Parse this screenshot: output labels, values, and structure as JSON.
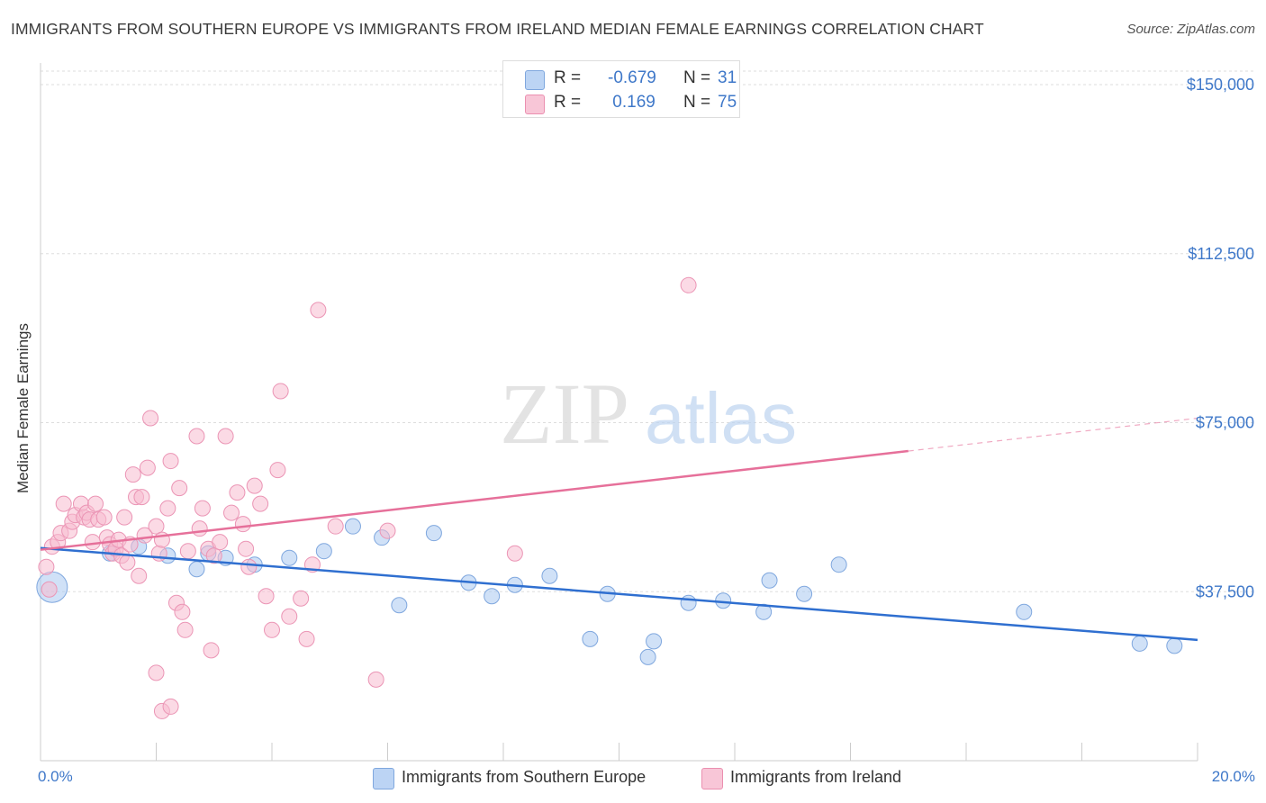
{
  "title": "IMMIGRANTS FROM SOUTHERN EUROPE VS IMMIGRANTS FROM IRELAND MEDIAN FEMALE EARNINGS CORRELATION CHART",
  "source": "Source: ZipAtlas.com",
  "watermark": {
    "zip": "ZIP",
    "atlas": "atlas"
  },
  "colors": {
    "blue": "#2f6fd0",
    "pink": "#e6709a",
    "blue_fill": "#a9c8f0",
    "pink_fill": "#f7bcd0",
    "axis_text": "#3f78c9"
  },
  "stats_legend": {
    "rows": [
      {
        "label": "R =",
        "r": "-0.679",
        "n_label": "N =",
        "n": "31"
      },
      {
        "label": "R =",
        "r": " 0.169",
        "n_label": "N =",
        "n": "75"
      }
    ]
  },
  "chart_data": {
    "type": "scatter",
    "ylabel": "Median Female Earnings",
    "xlim": [
      0,
      20
    ],
    "ylim": [
      0,
      153000
    ],
    "x_tick_labels": {
      "min": "0.0%",
      "max": "20.0%"
    },
    "y_ticks": [
      {
        "value": 37500,
        "label": "$37,500"
      },
      {
        "value": 75000,
        "label": "$75,000"
      },
      {
        "value": 112500,
        "label": "$112,500"
      },
      {
        "value": 150000,
        "label": "$150,000"
      }
    ],
    "grid": true,
    "legend_placement": "bottom",
    "series": [
      {
        "name": "Immigrants from Southern Europe",
        "color": "#2f6fd0",
        "trend": {
          "x": [
            0,
            20
          ],
          "y": [
            47200,
            26800
          ],
          "dashed_from": null
        },
        "points": [
          {
            "x": 0.2,
            "y": 38500,
            "big": true
          },
          {
            "x": 1.2,
            "y": 46000
          },
          {
            "x": 1.7,
            "y": 47500
          },
          {
            "x": 2.2,
            "y": 45500
          },
          {
            "x": 2.7,
            "y": 42500
          },
          {
            "x": 3.2,
            "y": 45000
          },
          {
            "x": 3.7,
            "y": 43500
          },
          {
            "x": 4.3,
            "y": 45000
          },
          {
            "x": 4.9,
            "y": 46500
          },
          {
            "x": 5.4,
            "y": 52000
          },
          {
            "x": 5.9,
            "y": 49500
          },
          {
            "x": 6.2,
            "y": 34500
          },
          {
            "x": 6.8,
            "y": 50500
          },
          {
            "x": 7.4,
            "y": 39500
          },
          {
            "x": 7.8,
            "y": 36500
          },
          {
            "x": 8.2,
            "y": 39000
          },
          {
            "x": 8.8,
            "y": 41000
          },
          {
            "x": 9.5,
            "y": 27000
          },
          {
            "x": 9.8,
            "y": 37000
          },
          {
            "x": 10.5,
            "y": 23000
          },
          {
            "x": 10.6,
            "y": 26500
          },
          {
            "x": 11.2,
            "y": 35000
          },
          {
            "x": 11.8,
            "y": 35500
          },
          {
            "x": 12.5,
            "y": 33000
          },
          {
            "x": 13.2,
            "y": 37000
          },
          {
            "x": 12.6,
            "y": 40000
          },
          {
            "x": 13.8,
            "y": 43500
          },
          {
            "x": 17.0,
            "y": 33000
          },
          {
            "x": 19.0,
            "y": 26000
          },
          {
            "x": 19.6,
            "y": 25500
          },
          {
            "x": 2.9,
            "y": 46000
          }
        ]
      },
      {
        "name": "Immigrants from Ireland",
        "color": "#e6709a",
        "trend": {
          "x": [
            0,
            20
          ],
          "y": [
            46800,
            76000
          ],
          "dashed_from": 15.0
        },
        "points": [
          {
            "x": 0.1,
            "y": 43000
          },
          {
            "x": 0.2,
            "y": 47500
          },
          {
            "x": 0.3,
            "y": 48500
          },
          {
            "x": 0.35,
            "y": 50500
          },
          {
            "x": 0.4,
            "y": 57000
          },
          {
            "x": 0.5,
            "y": 51000
          },
          {
            "x": 0.55,
            "y": 53000
          },
          {
            "x": 0.6,
            "y": 54500
          },
          {
            "x": 0.7,
            "y": 57000
          },
          {
            "x": 0.75,
            "y": 54000
          },
          {
            "x": 0.8,
            "y": 55000
          },
          {
            "x": 0.85,
            "y": 53500
          },
          {
            "x": 0.9,
            "y": 48500
          },
          {
            "x": 0.95,
            "y": 57000
          },
          {
            "x": 1.0,
            "y": 53500
          },
          {
            "x": 1.1,
            "y": 54000
          },
          {
            "x": 1.15,
            "y": 49500
          },
          {
            "x": 1.2,
            "y": 48000
          },
          {
            "x": 1.25,
            "y": 46000
          },
          {
            "x": 1.3,
            "y": 47000
          },
          {
            "x": 1.35,
            "y": 49000
          },
          {
            "x": 1.4,
            "y": 45500
          },
          {
            "x": 1.45,
            "y": 54000
          },
          {
            "x": 1.5,
            "y": 44000
          },
          {
            "x": 1.55,
            "y": 48000
          },
          {
            "x": 1.6,
            "y": 63500
          },
          {
            "x": 1.65,
            "y": 58500
          },
          {
            "x": 1.7,
            "y": 41000
          },
          {
            "x": 1.75,
            "y": 58500
          },
          {
            "x": 1.8,
            "y": 50000
          },
          {
            "x": 1.85,
            "y": 65000
          },
          {
            "x": 1.9,
            "y": 76000
          },
          {
            "x": 2.0,
            "y": 52000
          },
          {
            "x": 2.05,
            "y": 46000
          },
          {
            "x": 2.1,
            "y": 49000
          },
          {
            "x": 2.2,
            "y": 56000
          },
          {
            "x": 2.25,
            "y": 66500
          },
          {
            "x": 2.35,
            "y": 35000
          },
          {
            "x": 2.4,
            "y": 60500
          },
          {
            "x": 2.45,
            "y": 33000
          },
          {
            "x": 2.5,
            "y": 29000
          },
          {
            "x": 2.55,
            "y": 46500
          },
          {
            "x": 2.7,
            "y": 72000
          },
          {
            "x": 2.8,
            "y": 56000
          },
          {
            "x": 2.75,
            "y": 51500
          },
          {
            "x": 2.9,
            "y": 47000
          },
          {
            "x": 2.95,
            "y": 24500
          },
          {
            "x": 3.0,
            "y": 45500
          },
          {
            "x": 3.2,
            "y": 72000
          },
          {
            "x": 3.3,
            "y": 55000
          },
          {
            "x": 3.4,
            "y": 59500
          },
          {
            "x": 3.5,
            "y": 52500
          },
          {
            "x": 3.55,
            "y": 47000
          },
          {
            "x": 3.6,
            "y": 43000
          },
          {
            "x": 3.7,
            "y": 61000
          },
          {
            "x": 3.8,
            "y": 57000
          },
          {
            "x": 3.9,
            "y": 36500
          },
          {
            "x": 4.0,
            "y": 29000
          },
          {
            "x": 4.1,
            "y": 64500
          },
          {
            "x": 4.15,
            "y": 82000
          },
          {
            "x": 4.3,
            "y": 32000
          },
          {
            "x": 4.5,
            "y": 36000
          },
          {
            "x": 4.6,
            "y": 27000
          },
          {
            "x": 4.7,
            "y": 43500
          },
          {
            "x": 4.8,
            "y": 100000
          },
          {
            "x": 5.1,
            "y": 52000
          },
          {
            "x": 5.8,
            "y": 18000
          },
          {
            "x": 6.0,
            "y": 51000
          },
          {
            "x": 8.2,
            "y": 46000
          },
          {
            "x": 11.2,
            "y": 105500
          },
          {
            "x": 2.1,
            "y": 11000
          },
          {
            "x": 2.25,
            "y": 12000
          },
          {
            "x": 2.0,
            "y": 19500
          },
          {
            "x": 0.15,
            "y": 38000
          },
          {
            "x": 3.1,
            "y": 48500
          }
        ]
      }
    ]
  }
}
